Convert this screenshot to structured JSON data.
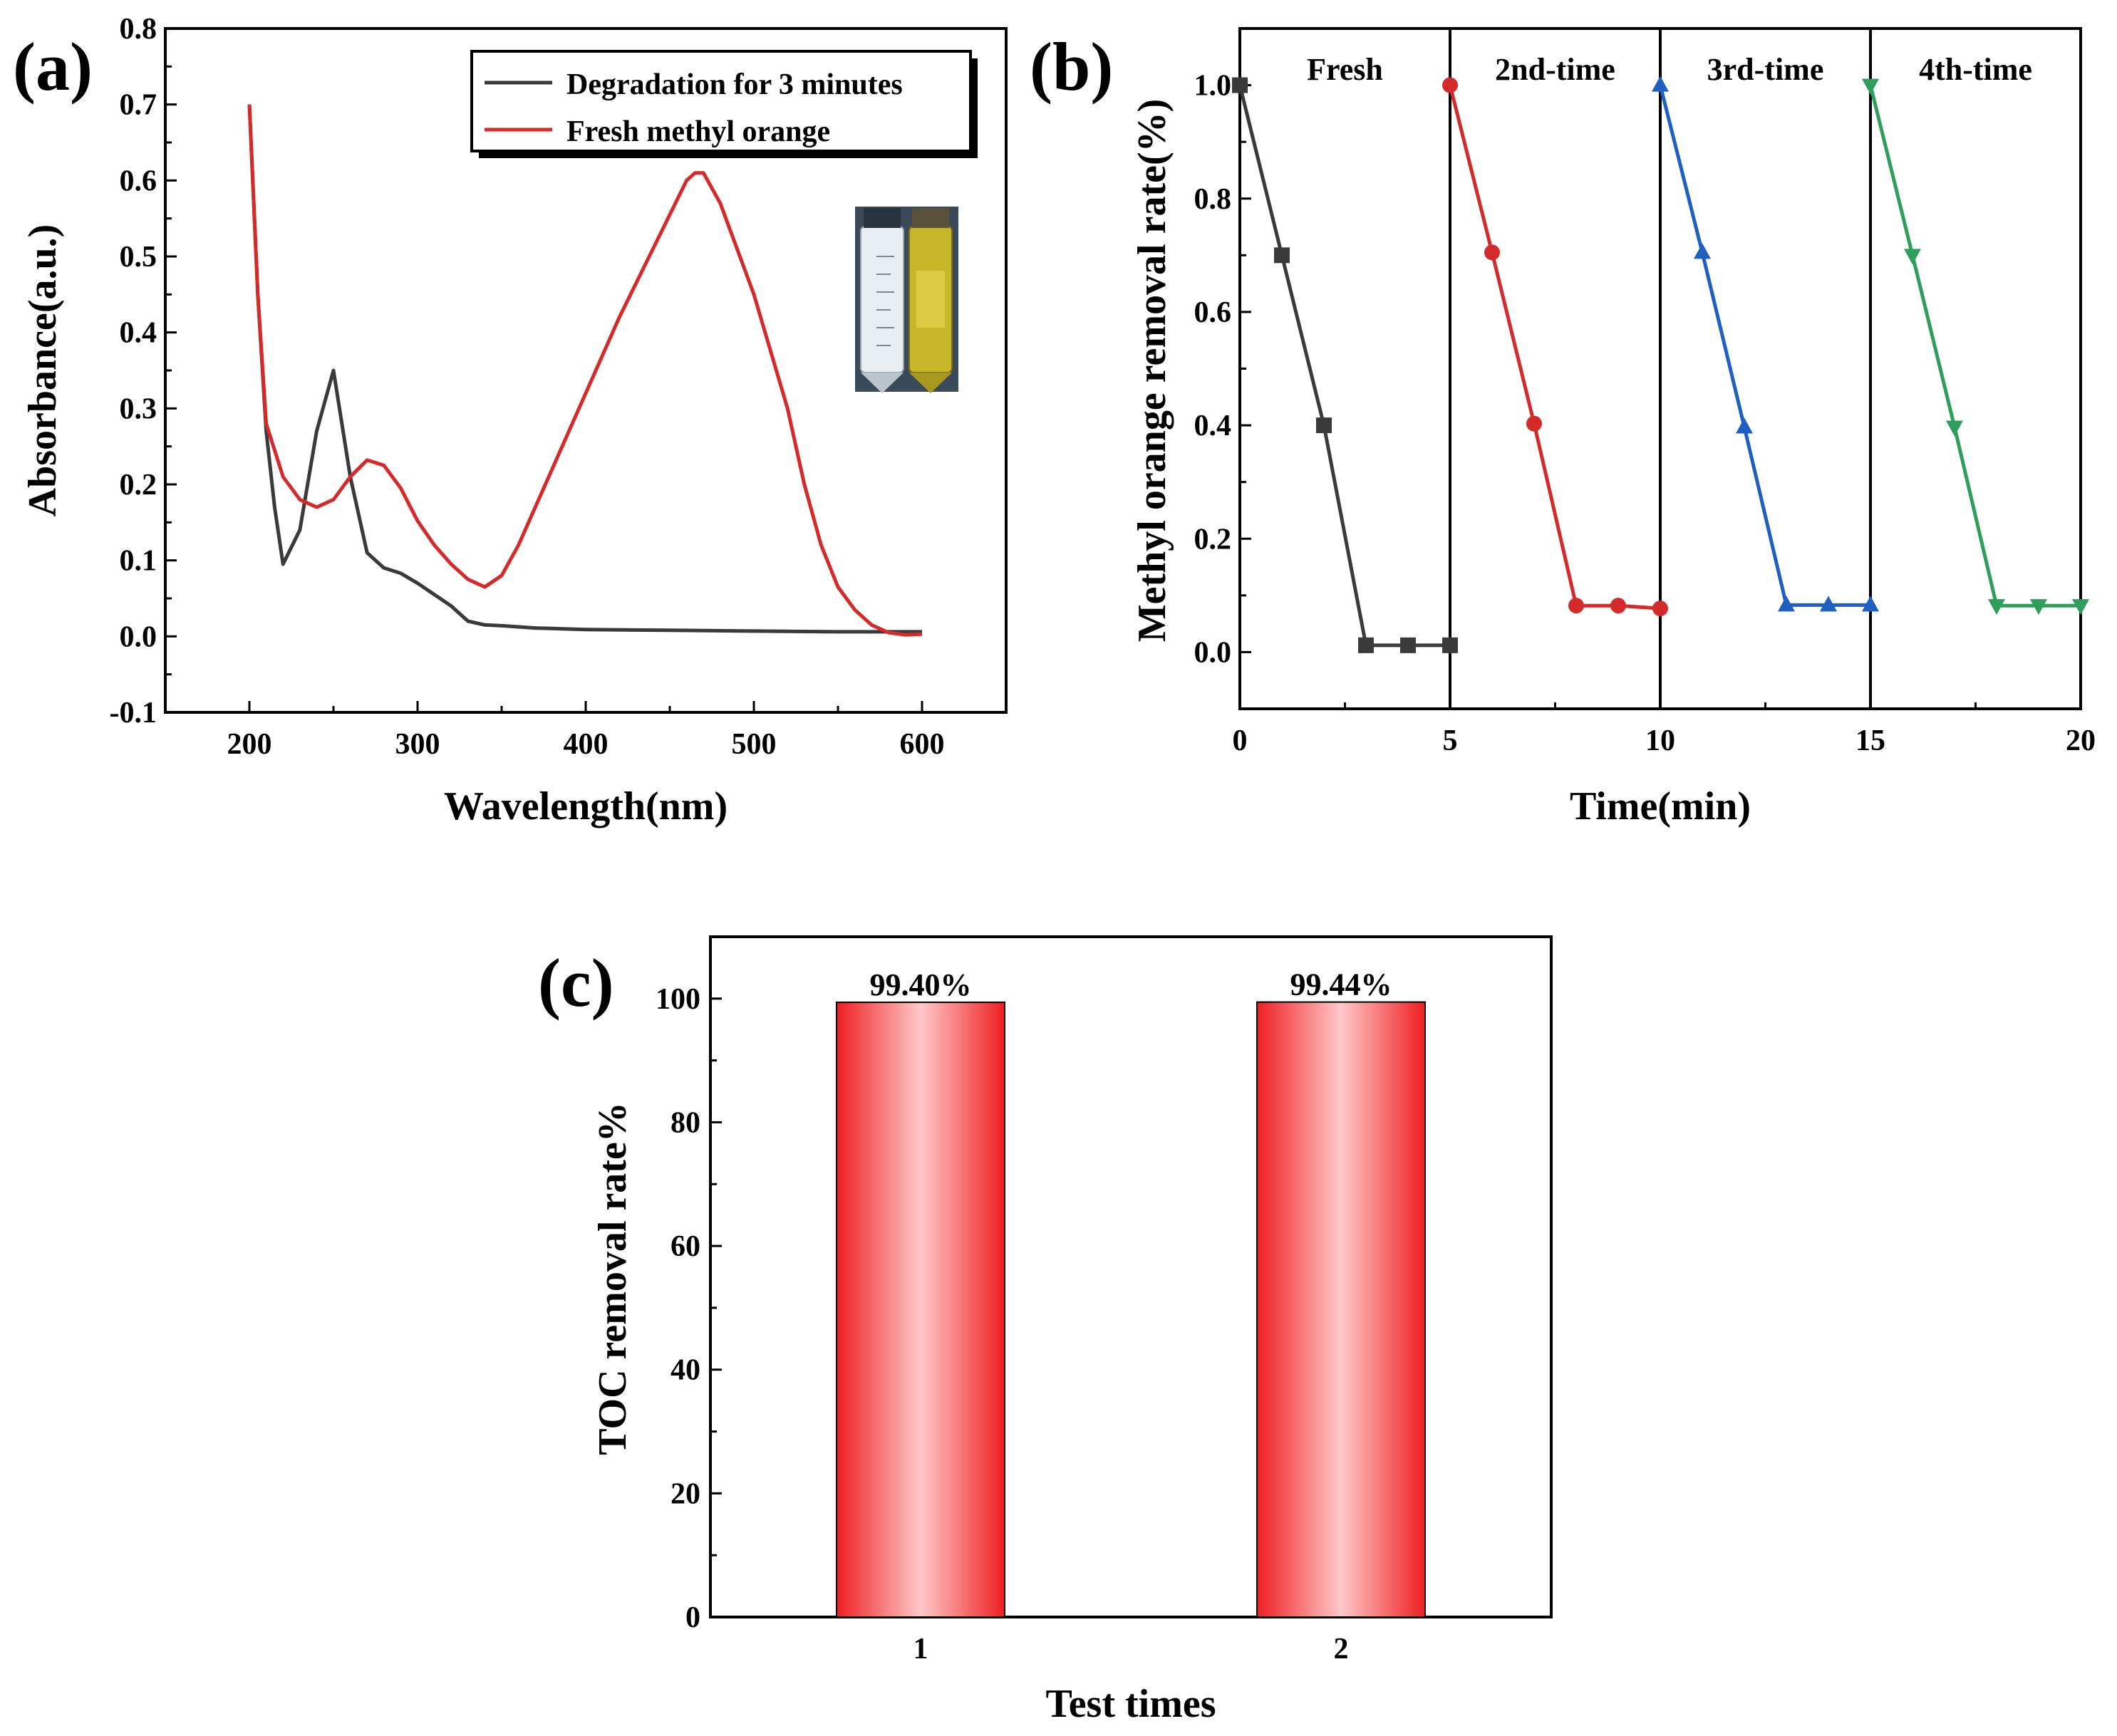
{
  "chart_data": [
    {
      "panel": "(a)",
      "type": "line",
      "xlabel": "Wavelength(nm)",
      "ylabel": "Absorbance(a.u.)",
      "xlim": [
        150,
        650
      ],
      "ylim": [
        -0.1,
        0.8
      ],
      "xticks": [
        200,
        300,
        400,
        500,
        600
      ],
      "yticks": [
        -0.1,
        0.0,
        0.1,
        0.2,
        0.3,
        0.4,
        0.5,
        0.6,
        0.7,
        0.8
      ],
      "legend_position": "top-right",
      "series": [
        {
          "name": "Degradation for 3 minutes",
          "color": "#3a3a3a",
          "points": [
            [
              200,
              0.7
            ],
            [
              205,
              0.45
            ],
            [
              210,
              0.27
            ],
            [
              215,
              0.17
            ],
            [
              220,
              0.095
            ],
            [
              230,
              0.14
            ],
            [
              240,
              0.27
            ],
            [
              250,
              0.35
            ],
            [
              260,
              0.21
            ],
            [
              270,
              0.11
            ],
            [
              280,
              0.09
            ],
            [
              290,
              0.083
            ],
            [
              300,
              0.07
            ],
            [
              310,
              0.055
            ],
            [
              320,
              0.04
            ],
            [
              330,
              0.02
            ],
            [
              340,
              0.015
            ],
            [
              350,
              0.014
            ],
            [
              370,
              0.011
            ],
            [
              400,
              0.009
            ],
            [
              450,
              0.008
            ],
            [
              500,
              0.007
            ],
            [
              550,
              0.006
            ],
            [
              600,
              0.006
            ]
          ]
        },
        {
          "name": "Fresh methyl orange",
          "color": "#d42a2a",
          "points": [
            [
              200,
              0.7
            ],
            [
              205,
              0.45
            ],
            [
              210,
              0.28
            ],
            [
              220,
              0.21
            ],
            [
              230,
              0.18
            ],
            [
              240,
              0.17
            ],
            [
              250,
              0.18
            ],
            [
              260,
              0.21
            ],
            [
              270,
              0.232
            ],
            [
              280,
              0.225
            ],
            [
              290,
              0.195
            ],
            [
              300,
              0.152
            ],
            [
              310,
              0.12
            ],
            [
              320,
              0.095
            ],
            [
              330,
              0.075
            ],
            [
              340,
              0.065
            ],
            [
              350,
              0.08
            ],
            [
              360,
              0.12
            ],
            [
              380,
              0.22
            ],
            [
              400,
              0.32
            ],
            [
              420,
              0.42
            ],
            [
              440,
              0.51
            ],
            [
              460,
              0.6
            ],
            [
              465,
              0.61
            ],
            [
              470,
              0.61
            ],
            [
              480,
              0.57
            ],
            [
              500,
              0.45
            ],
            [
              520,
              0.3
            ],
            [
              530,
              0.2
            ],
            [
              540,
              0.12
            ],
            [
              550,
              0.065
            ],
            [
              560,
              0.035
            ],
            [
              570,
              0.015
            ],
            [
              580,
              0.005
            ],
            [
              590,
              0.002
            ],
            [
              600,
              0.003
            ]
          ]
        }
      ]
    },
    {
      "panel": "(b)",
      "type": "line",
      "xlabel": "Time(min)",
      "ylabel": "Methyl orange removal rate(%)",
      "xlim": [
        0,
        20
      ],
      "ylim": [
        -0.1,
        1.1
      ],
      "xticks": [
        0,
        5,
        10,
        15,
        20
      ],
      "yticks": [
        0.0,
        0.2,
        0.4,
        0.6,
        0.8,
        1.0
      ],
      "dividers": [
        5,
        10,
        15
      ],
      "series": [
        {
          "name": "Fresh",
          "color": "#3a3a3a",
          "marker": "square",
          "x": [
            0,
            1,
            2,
            3,
            4,
            5
          ],
          "values": [
            1.0,
            0.7,
            0.4,
            0.012,
            0.012,
            0.012
          ]
        },
        {
          "name": "2nd-time",
          "color": "#d42a2a",
          "marker": "circle",
          "x": [
            5,
            6,
            7,
            8,
            9,
            10
          ],
          "values": [
            1.0,
            0.705,
            0.403,
            0.082,
            0.082,
            0.077
          ]
        },
        {
          "name": "3rd-time",
          "color": "#1f5fc2",
          "marker": "triangle-up",
          "x": [
            10,
            11,
            12,
            13,
            14,
            15
          ],
          "values": [
            1.0,
            0.705,
            0.397,
            0.083,
            0.083,
            0.083
          ]
        },
        {
          "name": "4th-time",
          "color": "#2e9e5b",
          "marker": "triangle-down",
          "x": [
            15,
            16,
            17,
            18,
            19,
            20
          ],
          "values": [
            1.0,
            0.7,
            0.397,
            0.082,
            0.082,
            0.082
          ]
        }
      ]
    },
    {
      "panel": "(c)",
      "type": "bar",
      "xlabel": "Test times",
      "ylabel": "TOC removal rate%",
      "categories": [
        "1",
        "2"
      ],
      "values": [
        99.4,
        99.44
      ],
      "value_labels": [
        "99.40%",
        "99.44%"
      ],
      "ylim": [
        0,
        110
      ],
      "yticks": [
        0,
        20,
        40,
        60,
        80,
        100
      ],
      "bar_color": "#f20f10"
    }
  ]
}
